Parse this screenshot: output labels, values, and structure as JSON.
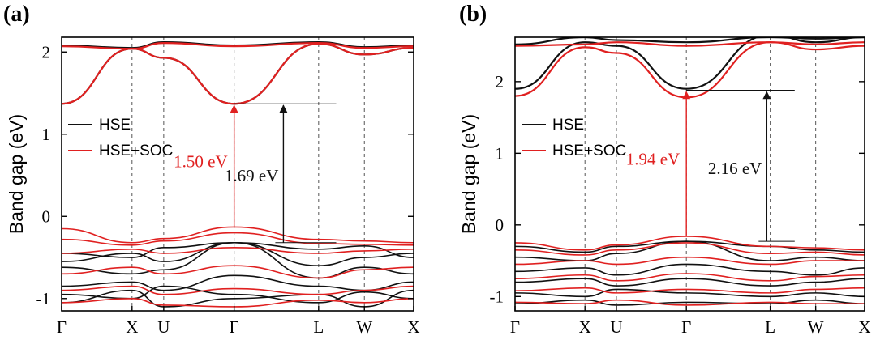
{
  "chart_data": [
    {
      "panel_label": "(a)",
      "type": "line",
      "ylabel": "Band gap (eV)",
      "ylim": [
        -1.15,
        2.18
      ],
      "yticks": [
        -1,
        0,
        1,
        2
      ],
      "xlabels": [
        "Γ",
        "X",
        "U",
        "Γ",
        "L",
        "W",
        "X"
      ],
      "k_positions": [
        0,
        0.2,
        0.29,
        0.49,
        0.73,
        0.86,
        1.0
      ],
      "legend": [
        "HSE",
        "HSE+SOC"
      ],
      "colors": {
        "hse": "#111111",
        "soc": "#e02020"
      },
      "gap_soc_label": "1.50 eV",
      "gap_hse_label": "1.69 eV",
      "cbm": 1.37,
      "vbm_soc": -0.13,
      "vbm_hse": -0.32,
      "arrow_x_soc": 0.49,
      "arrow_x_hse": 0.63,
      "arrow_right_end": 0.78,
      "series": [
        {
          "name": "HSE",
          "band": "cb1",
          "y": [
            1.37,
            2.04,
            1.93,
            1.37,
            2.1,
            1.97,
            2.05
          ]
        },
        {
          "name": "HSE",
          "band": "cb2",
          "y": [
            2.08,
            2.05,
            2.12,
            2.08,
            2.12,
            2.06,
            2.08
          ]
        },
        {
          "name": "HSE",
          "band": "vb1",
          "y": [
            -0.45,
            -0.5,
            -0.38,
            -0.32,
            -0.4,
            -0.36,
            -0.5
          ]
        },
        {
          "name": "HSE",
          "band": "vb2",
          "y": [
            -0.55,
            -0.45,
            -0.55,
            -0.32,
            -0.6,
            -0.5,
            -0.45
          ]
        },
        {
          "name": "HSE",
          "band": "vb3",
          "y": [
            -0.62,
            -0.7,
            -0.65,
            -0.32,
            -0.75,
            -0.62,
            -0.7
          ]
        },
        {
          "name": "HSE",
          "band": "vb4",
          "y": [
            -0.85,
            -0.8,
            -0.9,
            -0.72,
            -0.85,
            -0.9,
            -0.8
          ]
        },
        {
          "name": "HSE",
          "band": "vb5",
          "y": [
            -0.95,
            -1.0,
            -0.85,
            -0.95,
            -1.05,
            -0.92,
            -1.0
          ]
        },
        {
          "name": "HSE",
          "band": "vb6",
          "y": [
            -1.05,
            -0.9,
            -1.1,
            -1.0,
            -0.95,
            -1.1,
            -0.9
          ]
        },
        {
          "name": "HSE+SOC",
          "band": "cb1",
          "y": [
            1.37,
            2.04,
            1.93,
            1.37,
            2.1,
            1.97,
            2.05
          ]
        },
        {
          "name": "HSE+SOC",
          "band": "cb2",
          "y": [
            2.07,
            2.04,
            2.11,
            2.07,
            2.11,
            2.05,
            2.07
          ]
        },
        {
          "name": "HSE+SOC",
          "band": "vb1",
          "y": [
            -0.15,
            -0.32,
            -0.27,
            -0.13,
            -0.28,
            -0.3,
            -0.32
          ]
        },
        {
          "name": "HSE+SOC",
          "band": "vb2",
          "y": [
            -0.28,
            -0.35,
            -0.3,
            -0.2,
            -0.33,
            -0.34,
            -0.35
          ]
        },
        {
          "name": "HSE+SOC",
          "band": "vb3",
          "y": [
            -0.45,
            -0.4,
            -0.45,
            -0.38,
            -0.45,
            -0.42,
            -0.4
          ]
        },
        {
          "name": "HSE+SOC",
          "band": "vb4",
          "y": [
            -0.7,
            -0.62,
            -0.7,
            -0.6,
            -0.75,
            -0.65,
            -0.62
          ]
        },
        {
          "name": "HSE+SOC",
          "band": "vb5",
          "y": [
            -0.9,
            -0.85,
            -0.95,
            -0.88,
            -0.95,
            -0.9,
            -0.85
          ]
        },
        {
          "name": "HSE+SOC",
          "band": "vb6",
          "y": [
            -1.05,
            -1.0,
            -1.08,
            -1.1,
            -1.02,
            -1.05,
            -1.0
          ]
        }
      ]
    },
    {
      "panel_label": "(b)",
      "type": "line",
      "ylabel": "Band gap (eV)",
      "ylim": [
        -1.2,
        2.62
      ],
      "yticks": [
        -1,
        0,
        1,
        2
      ],
      "xlabels": [
        "Γ",
        "X",
        "U",
        "Γ",
        "L",
        "W",
        "X"
      ],
      "k_positions": [
        0,
        0.2,
        0.29,
        0.49,
        0.73,
        0.86,
        1.0
      ],
      "legend": [
        "HSE",
        "HSE+SOC"
      ],
      "colors": {
        "hse": "#111111",
        "soc": "#e02020"
      },
      "gap_soc_label": "1.94 eV",
      "gap_hse_label": "2.16 eV",
      "cbm": 1.88,
      "vbm_soc": -0.16,
      "vbm_hse": -0.23,
      "arrow_x_soc": 0.49,
      "arrow_x_hse": 0.72,
      "arrow_right_end": 0.8,
      "series": [
        {
          "name": "HSE",
          "band": "cb1",
          "y": [
            1.9,
            2.55,
            2.5,
            1.9,
            2.65,
            2.55,
            2.62
          ]
        },
        {
          "name": "HSE",
          "band": "cb2",
          "y": [
            2.52,
            2.62,
            2.58,
            2.55,
            2.62,
            2.6,
            2.62
          ]
        },
        {
          "name": "HSE",
          "band": "vb1",
          "y": [
            -0.3,
            -0.38,
            -0.3,
            -0.23,
            -0.3,
            -0.35,
            -0.38
          ]
        },
        {
          "name": "HSE",
          "band": "vb2",
          "y": [
            -0.45,
            -0.5,
            -0.4,
            -0.23,
            -0.5,
            -0.45,
            -0.5
          ]
        },
        {
          "name": "HSE",
          "band": "vb3",
          "y": [
            -0.65,
            -0.6,
            -0.7,
            -0.55,
            -0.65,
            -0.7,
            -0.6
          ]
        },
        {
          "name": "HSE",
          "band": "vb4",
          "y": [
            -0.8,
            -0.75,
            -0.85,
            -0.75,
            -0.85,
            -0.8,
            -0.75
          ]
        },
        {
          "name": "HSE",
          "band": "vb5",
          "y": [
            -0.95,
            -1.0,
            -0.9,
            -0.95,
            -1.0,
            -0.95,
            -1.0
          ]
        },
        {
          "name": "HSE",
          "band": "vb6",
          "y": [
            -1.1,
            -1.05,
            -1.12,
            -1.08,
            -1.1,
            -1.05,
            -1.1
          ]
        },
        {
          "name": "HSE+SOC",
          "band": "cb1",
          "y": [
            1.8,
            2.48,
            2.4,
            1.78,
            2.55,
            2.45,
            2.5
          ]
        },
        {
          "name": "HSE+SOC",
          "band": "cb2",
          "y": [
            2.5,
            2.52,
            2.55,
            2.5,
            2.55,
            2.52,
            2.55
          ]
        },
        {
          "name": "HSE+SOC",
          "band": "vb1",
          "y": [
            -0.25,
            -0.35,
            -0.28,
            -0.16,
            -0.3,
            -0.32,
            -0.35
          ]
        },
        {
          "name": "HSE+SOC",
          "band": "vb2",
          "y": [
            -0.35,
            -0.42,
            -0.35,
            -0.25,
            -0.4,
            -0.38,
            -0.42
          ]
        },
        {
          "name": "HSE+SOC",
          "band": "vb3",
          "y": [
            -0.55,
            -0.5,
            -0.55,
            -0.45,
            -0.55,
            -0.5,
            -0.5
          ]
        },
        {
          "name": "HSE+SOC",
          "band": "vb4",
          "y": [
            -0.75,
            -0.7,
            -0.78,
            -0.68,
            -0.78,
            -0.72,
            -0.7
          ]
        },
        {
          "name": "HSE+SOC",
          "band": "vb5",
          "y": [
            -0.92,
            -0.88,
            -0.95,
            -0.9,
            -0.95,
            -0.9,
            -0.88
          ]
        },
        {
          "name": "HSE+SOC",
          "band": "vb6",
          "y": [
            -1.08,
            -1.1,
            -1.05,
            -1.12,
            -1.08,
            -1.1,
            -1.1
          ]
        }
      ]
    }
  ]
}
